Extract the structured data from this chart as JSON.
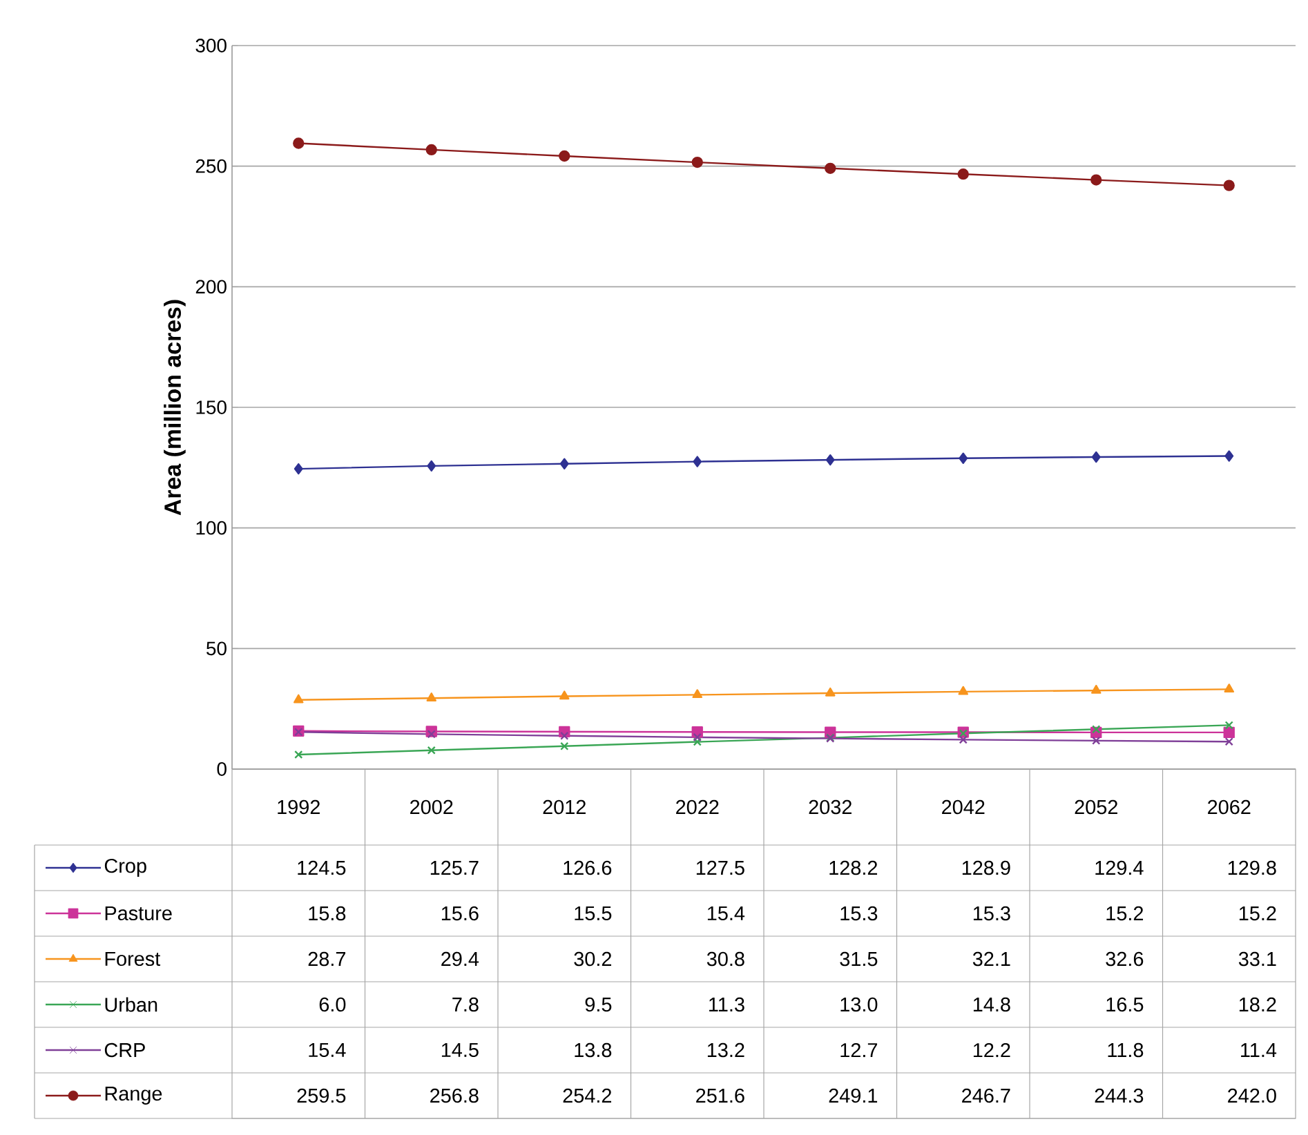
{
  "chart_data": {
    "type": "line",
    "ylabel": "Area (million acres)",
    "categories": [
      "1992",
      "2002",
      "2012",
      "2022",
      "2032",
      "2042",
      "2052",
      "2062"
    ],
    "series": [
      {
        "name": "Crop",
        "color": "#2e3192",
        "marker": "diamond",
        "values": [
          124.5,
          125.7,
          126.6,
          127.5,
          128.2,
          128.9,
          129.4,
          129.8
        ],
        "value_labels": [
          "124.5",
          "125.7",
          "126.6",
          "127.5",
          "128.2",
          "128.9",
          "129.4",
          "129.8"
        ]
      },
      {
        "name": "Pasture",
        "color": "#cc3399",
        "marker": "square",
        "values": [
          15.8,
          15.6,
          15.5,
          15.4,
          15.3,
          15.3,
          15.2,
          15.2
        ],
        "value_labels": [
          "15.8",
          "15.6",
          "15.5",
          "15.4",
          "15.3",
          "15.3",
          "15.2",
          "15.2"
        ]
      },
      {
        "name": "Forest",
        "color": "#f7941d",
        "marker": "triangle",
        "values": [
          28.7,
          29.4,
          30.2,
          30.8,
          31.5,
          32.1,
          32.6,
          33.1
        ],
        "value_labels": [
          "28.7",
          "29.4",
          "30.2",
          "30.8",
          "31.5",
          "32.1",
          "32.6",
          "33.1"
        ]
      },
      {
        "name": "Urban",
        "color": "#3aa655",
        "marker": "cross",
        "values": [
          6.0,
          7.8,
          9.5,
          11.3,
          13.0,
          14.8,
          16.5,
          18.2
        ],
        "value_labels": [
          "6.0",
          "7.8",
          "9.5",
          "11.3",
          "13.0",
          "14.8",
          "16.5",
          "18.2"
        ]
      },
      {
        "name": "CRP",
        "color": "#7f3f98",
        "marker": "cross",
        "values": [
          15.4,
          14.5,
          13.8,
          13.2,
          12.7,
          12.2,
          11.8,
          11.4
        ],
        "value_labels": [
          "15.4",
          "14.5",
          "13.8",
          "13.2",
          "12.7",
          "12.2",
          "11.8",
          "11.4"
        ]
      },
      {
        "name": "Range",
        "color": "#8b1a1a",
        "marker": "circle",
        "values": [
          259.5,
          256.8,
          254.2,
          251.6,
          249.1,
          246.7,
          244.3,
          242.0
        ],
        "value_labels": [
          "259.5",
          "256.8",
          "254.2",
          "251.6",
          "249.1",
          "246.7",
          "244.3",
          "242.0"
        ]
      }
    ],
    "ylim": [
      0,
      300
    ],
    "yticks": [
      0,
      50,
      100,
      150,
      200,
      250,
      300
    ],
    "grid": "y",
    "legend": "bottom",
    "line_style": "solid"
  }
}
